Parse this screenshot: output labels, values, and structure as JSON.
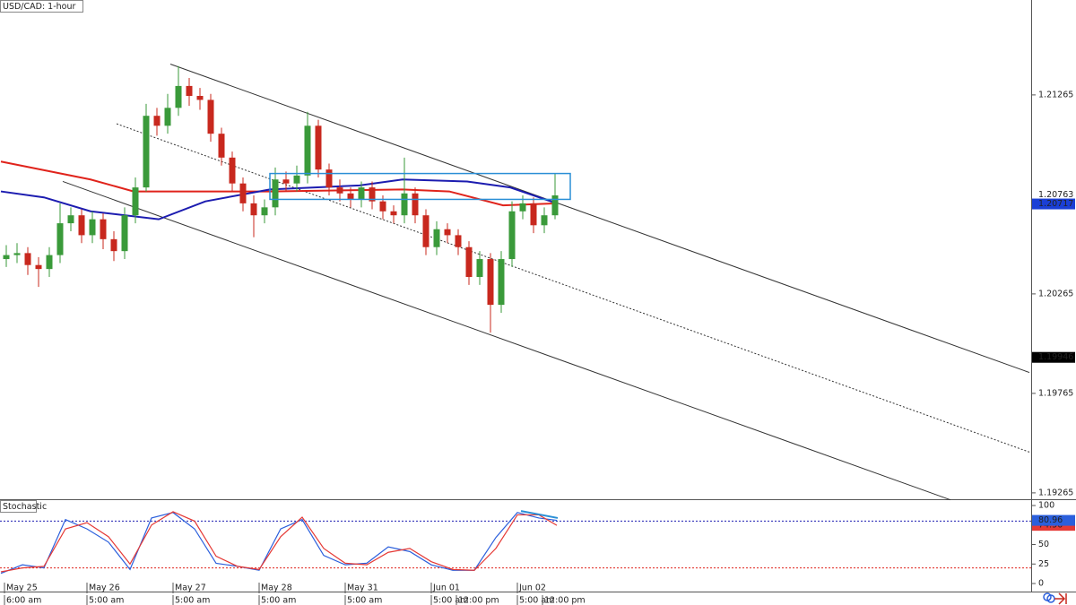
{
  "chart_data": [
    {
      "type": "candlestick",
      "title": "USD/CAD: 1-hour",
      "x": [
        1.5,
        4.5,
        7.5,
        10.5,
        13.5,
        16.5,
        19.5,
        22.5,
        25.5,
        28.5,
        31.5,
        34.5,
        37.5,
        40.5,
        43.5,
        46.5,
        49.5,
        52.5,
        55.5,
        58.5,
        61.5,
        64.5,
        67.5,
        70.5,
        73.5,
        76.5,
        79.5,
        82.5,
        85.5,
        88.5,
        91.5,
        94.5,
        97.5,
        100.5,
        103.5,
        106.5,
        109.5,
        112.5,
        115.5,
        118.5,
        121.5,
        124.5,
        127.5,
        130.5,
        133.5,
        136.5,
        139.5,
        142.5,
        145.5,
        148.5,
        151.5,
        154.5
      ],
      "open": [
        1.2044,
        1.2046,
        1.2047,
        1.2041,
        1.2039,
        1.2046,
        1.2062,
        1.2066,
        1.2056,
        1.2064,
        1.2054,
        1.2048,
        1.2066,
        1.208,
        1.2116,
        1.2111,
        1.212,
        1.2131,
        1.2126,
        1.2124,
        1.2107,
        1.2095,
        1.2082,
        1.2072,
        1.2066,
        1.207,
        1.2084,
        1.2082,
        1.2086,
        1.2111,
        1.2089,
        1.208,
        1.2077,
        1.2074,
        1.208,
        1.2073,
        1.2068,
        1.2066,
        1.2077,
        1.2066,
        1.205,
        1.2059,
        1.2056,
        1.205,
        1.2035,
        1.2044,
        1.2021,
        1.2044,
        1.2068,
        1.2072,
        1.2061,
        1.2066
      ],
      "high": [
        1.2051,
        1.2052,
        1.205,
        1.2045,
        1.205,
        1.2072,
        1.207,
        1.2069,
        1.2068,
        1.2067,
        1.2058,
        1.207,
        1.2085,
        1.2122,
        1.212,
        1.2127,
        1.2141,
        1.2135,
        1.213,
        1.2127,
        1.211,
        1.2098,
        1.2085,
        1.2076,
        1.2074,
        1.209,
        1.2088,
        1.2091,
        1.2118,
        1.2114,
        1.2092,
        1.2084,
        1.208,
        1.2083,
        1.2083,
        1.2076,
        1.2071,
        1.2095,
        1.208,
        1.2069,
        1.2063,
        1.2062,
        1.2059,
        1.2053,
        1.2048,
        1.2047,
        1.2048,
        1.2073,
        1.2076,
        1.2075,
        1.207,
        1.2087
      ],
      "low": [
        1.204,
        1.2042,
        1.2036,
        1.203,
        1.2035,
        1.2042,
        1.2058,
        1.2052,
        1.2052,
        1.2049,
        1.2043,
        1.2044,
        1.2062,
        1.2078,
        1.2106,
        1.2107,
        1.2116,
        1.2121,
        1.2119,
        1.2103,
        1.2091,
        1.2078,
        1.2068,
        1.2055,
        1.2062,
        1.2066,
        1.2078,
        1.2078,
        1.2082,
        1.2085,
        1.2076,
        1.2073,
        1.207,
        1.207,
        1.2069,
        1.2064,
        1.2062,
        1.2062,
        1.2062,
        1.2046,
        1.2046,
        1.2052,
        1.2046,
        1.2031,
        1.2031,
        1.2007,
        1.2017,
        1.204,
        1.2064,
        1.2057,
        1.2057,
        1.2064
      ],
      "close": [
        1.2046,
        1.2047,
        1.2041,
        1.2039,
        1.2046,
        1.2062,
        1.2066,
        1.2056,
        1.2064,
        1.2054,
        1.2048,
        1.2066,
        1.208,
        1.2116,
        1.2111,
        1.212,
        1.2131,
        1.2126,
        1.2124,
        1.2107,
        1.2095,
        1.2082,
        1.2072,
        1.2066,
        1.207,
        1.2084,
        1.2082,
        1.2086,
        1.2111,
        1.2089,
        1.208,
        1.2077,
        1.2074,
        1.208,
        1.2073,
        1.2068,
        1.2066,
        1.2077,
        1.2066,
        1.205,
        1.2059,
        1.2056,
        1.205,
        1.2035,
        1.2044,
        1.2021,
        1.2044,
        1.2068,
        1.2072,
        1.2061,
        1.2066,
        1.2076
      ],
      "up_color": "#3a9a3a",
      "down_color": "#c8281e",
      "series": [
        {
          "color": "#e0231b",
          "x": [
            0,
            25,
            37,
            75,
            112,
            125,
            140,
            155
          ],
          "values": [
            1.2093,
            1.2084,
            1.2078,
            1.2078,
            1.2079,
            1.2078,
            1.2071,
            1.2072
          ]
        },
        {
          "color": "#1c1cb0",
          "x": [
            0,
            12,
            25,
            44,
            57,
            75,
            100,
            112,
            130,
            142,
            155
          ],
          "values": [
            1.2078,
            1.2075,
            1.2068,
            1.2064,
            1.2073,
            1.2079,
            1.2081,
            1.2084,
            1.2083,
            1.208,
            1.2072
          ]
        }
      ],
      "trendlines": [
        {
          "x": [
            47.25,
            286.75
          ],
          "y": [
            1.2142,
            1.1987
          ],
          "style": "solid"
        },
        {
          "x": [
            32.25,
            286.75
          ],
          "y": [
            1.2112,
            1.1947
          ],
          "style": "dotted"
        },
        {
          "x": [
            17.25,
            264.75
          ],
          "y": [
            1.2083,
            1.1923
          ],
          "style": "solid"
        }
      ],
      "rectangle": {
        "x": [
          75,
          158.75
        ],
        "y": [
          1.2087,
          1.2074
        ],
        "color": "#2a8fd6"
      },
      "price_tags": [
        {
          "value": 1.20763,
          "background": "#ffffff",
          "color": "#000000"
        },
        {
          "value": 1.20717,
          "background": "#1a3fd6",
          "color": "#ffffff"
        },
        {
          "value": 1.19946,
          "background": "#000000",
          "color": "#ffffff"
        }
      ],
      "xlim": [
        -0.25,
        287.25
      ],
      "ylim": [
        1.19233,
        1.21742
      ],
      "yticks": [
        1.21265,
        1.20265,
        1.19765,
        1.19265
      ],
      "xticks": [
        {
          "value": 1,
          "label": "May 25"
        },
        {
          "value": 24,
          "label": "May 26"
        },
        {
          "value": 48,
          "label": "May 27"
        },
        {
          "value": 72,
          "label": "May 28"
        },
        {
          "value": 96,
          "label": "May 31"
        },
        {
          "value": 120,
          "label": "Jun 01"
        },
        {
          "value": 144,
          "label": "Jun 02"
        }
      ],
      "xticks2": [
        {
          "value": 1,
          "label": "6:00 am"
        },
        {
          "value": 24,
          "label": "5:00 am"
        },
        {
          "value": 48,
          "label": "5:00 am"
        },
        {
          "value": 72,
          "label": "5:00 am"
        },
        {
          "value": 96,
          "label": "5:00 am"
        },
        {
          "value": 120,
          "label": "5:00 am"
        },
        {
          "value": 127,
          "label": "12:00 pm"
        },
        {
          "value": 144,
          "label": "5:00 am"
        },
        {
          "value": 151,
          "label": "12:00 pm"
        }
      ]
    },
    {
      "type": "stochastic",
      "title": "Stochastic",
      "x": [
        0,
        6,
        12,
        18,
        24,
        30,
        36,
        42,
        48,
        54,
        60,
        66,
        72,
        78,
        84,
        90,
        96,
        102,
        108,
        114,
        120,
        126,
        132,
        138,
        144,
        150,
        155
      ],
      "series": [
        {
          "color": "#2b5fdc",
          "values": [
            13,
            24,
            20,
            82,
            70,
            53,
            18,
            84,
            91,
            70,
            26,
            22,
            17,
            70,
            82,
            36,
            24,
            26,
            47,
            41,
            24,
            17,
            17,
            59,
            91,
            84,
            80.96
          ]
        },
        {
          "color": "#e53935",
          "values": [
            15,
            20,
            22,
            70,
            78,
            60,
            25,
            75,
            92,
            80,
            35,
            22,
            18,
            60,
            85,
            45,
            26,
            24,
            40,
            45,
            28,
            18,
            17,
            45,
            88,
            88,
            74.56
          ]
        }
      ],
      "levels": [
        {
          "value": 80,
          "color": "#1c1cb0"
        },
        {
          "value": 20,
          "color": "#e0231b"
        }
      ],
      "divergence": {
        "x": [
          145,
          155.25
        ],
        "y": [
          93,
          84
        ],
        "color": "#2a8fd6"
      },
      "xlim": [
        -0.25,
        287.25
      ],
      "ylim": [
        -10.3,
        106.9
      ],
      "yticks": [
        100,
        75,
        50,
        25,
        0
      ]
    }
  ]
}
